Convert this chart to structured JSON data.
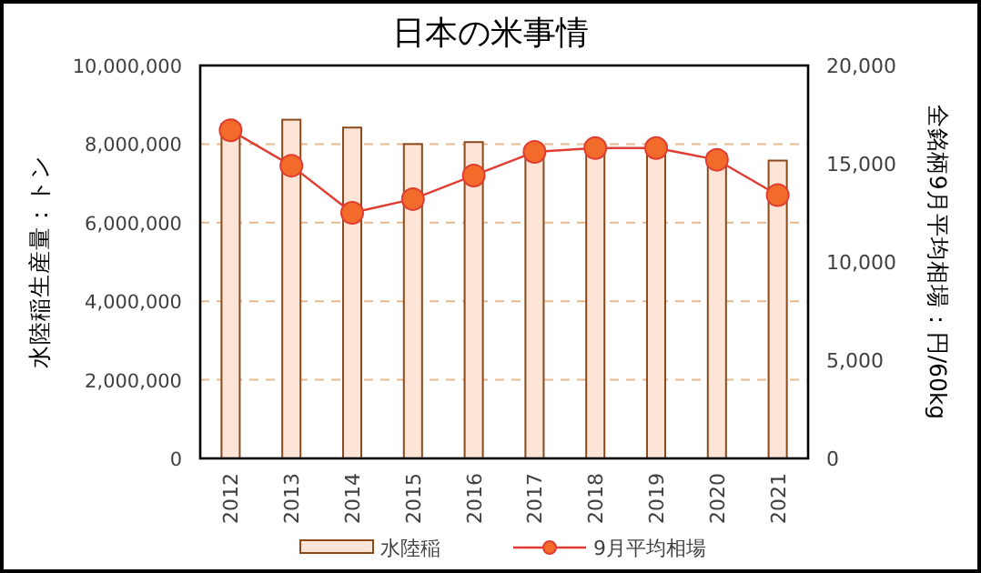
{
  "chart_data": {
    "type": "bar",
    "title": "日本の米事情",
    "ylabel": "水陸稲生産量：トン",
    "y2label": "全銘柄9月平均相場：円/60kg",
    "categories": [
      "2012",
      "2013",
      "2014",
      "2015",
      "2016",
      "2017",
      "2018",
      "2019",
      "2020",
      "2021"
    ],
    "series": [
      {
        "name": "水陸稲",
        "color": "#fce4d6",
        "values": [
          8510000,
          8620000,
          8420000,
          8000000,
          8050000,
          7780000,
          7780000,
          7760000,
          7760000,
          7580000
        ]
      },
      {
        "name": "9月平均相場",
        "type": "line",
        "axis": "y2",
        "color": "#e03c31",
        "marker": "circle",
        "values": [
          16700,
          14900,
          12500,
          13200,
          14400,
          15600,
          15800,
          15800,
          15200,
          13400
        ]
      }
    ],
    "ylim": [
      0,
      10000000
    ],
    "yticks": [
      {
        "value": 0,
        "label": "0"
      },
      {
        "value": 2000000,
        "label": "2,000,000"
      },
      {
        "value": 4000000,
        "label": "4,000,000"
      },
      {
        "value": 6000000,
        "label": "6,000,000"
      },
      {
        "value": 8000000,
        "label": "8,000,000"
      },
      {
        "value": 10000000,
        "label": "10,000,000"
      }
    ],
    "y2lim": [
      0,
      20000
    ],
    "y2ticks": [
      {
        "value": 0,
        "label": "0"
      },
      {
        "value": 5000,
        "label": "5,000"
      },
      {
        "value": 10000,
        "label": "10,000"
      },
      {
        "value": 15000,
        "label": "15,000"
      },
      {
        "value": 20000,
        "label": "20,000"
      }
    ],
    "grid": "y",
    "legend": "bottom"
  }
}
